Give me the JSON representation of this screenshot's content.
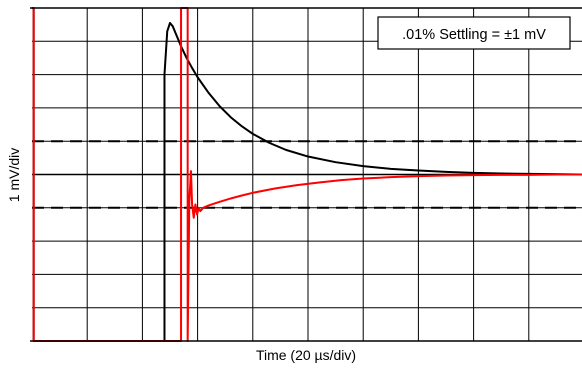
{
  "chart_data": {
    "type": "line",
    "title": "",
    "xlabel": "Time (20 µs/div)",
    "ylabel": "1 mV/div",
    "annotation": ".01% Settling = ±1 mV",
    "grid": true,
    "grid_divisions": {
      "x": 10,
      "y": 10
    },
    "xlim": [
      0,
      10
    ],
    "ylim": [
      -5,
      5
    ],
    "x_units": "div (20 µs/div)",
    "y_units": "mV (1 mV/div, centerline = 0)",
    "settling_band_mV": [
      1,
      -1
    ],
    "colors": {
      "black_trace": "#000000",
      "red_trace": "#ff0000",
      "grid": "#000000",
      "background": "#ffffff"
    },
    "series": [
      {
        "color": "#000000",
        "x": [
          0.0,
          0.03,
          0.03,
          2.4,
          2.4,
          2.45,
          2.5,
          2.55,
          2.6,
          2.65,
          2.7,
          2.8,
          2.9,
          3.0,
          3.2,
          3.4,
          3.6,
          3.8,
          4.0,
          4.3,
          4.6,
          5.0,
          5.5,
          6.0,
          6.5,
          7.0,
          7.5,
          8.0,
          8.5,
          9.0,
          9.5,
          10.0
        ],
        "y": [
          5.0,
          5.0,
          -5.0,
          -5.0,
          3.0,
          4.3,
          4.55,
          4.45,
          4.25,
          4.05,
          3.85,
          3.5,
          3.2,
          2.92,
          2.45,
          2.05,
          1.72,
          1.45,
          1.22,
          0.95,
          0.74,
          0.54,
          0.37,
          0.25,
          0.17,
          0.12,
          0.08,
          0.05,
          0.03,
          0.02,
          0.01,
          0.0
        ]
      },
      {
        "color": "#ff0000",
        "x": [
          0.0,
          0.03,
          0.03,
          2.7,
          2.7,
          2.82,
          2.82,
          2.85,
          2.88,
          2.9,
          2.93,
          2.96,
          2.99,
          3.02,
          3.05,
          3.1,
          3.2,
          3.4,
          3.6,
          3.8,
          4.0,
          4.4,
          4.8,
          5.2,
          5.6,
          6.0,
          6.5,
          7.0,
          7.5,
          8.0,
          8.5,
          9.0,
          9.5,
          10.0
        ],
        "y": [
          5.0,
          5.0,
          -5.0,
          -5.0,
          5.0,
          5.0,
          -5.0,
          -0.8,
          0.1,
          -0.9,
          -1.3,
          -0.9,
          -1.2,
          -1.0,
          -1.1,
          -1.0,
          -0.93,
          -0.82,
          -0.72,
          -0.63,
          -0.55,
          -0.42,
          -0.32,
          -0.24,
          -0.17,
          -0.12,
          -0.08,
          -0.05,
          -0.03,
          -0.02,
          -0.01,
          -0.01,
          0.0,
          0.0
        ]
      }
    ]
  }
}
